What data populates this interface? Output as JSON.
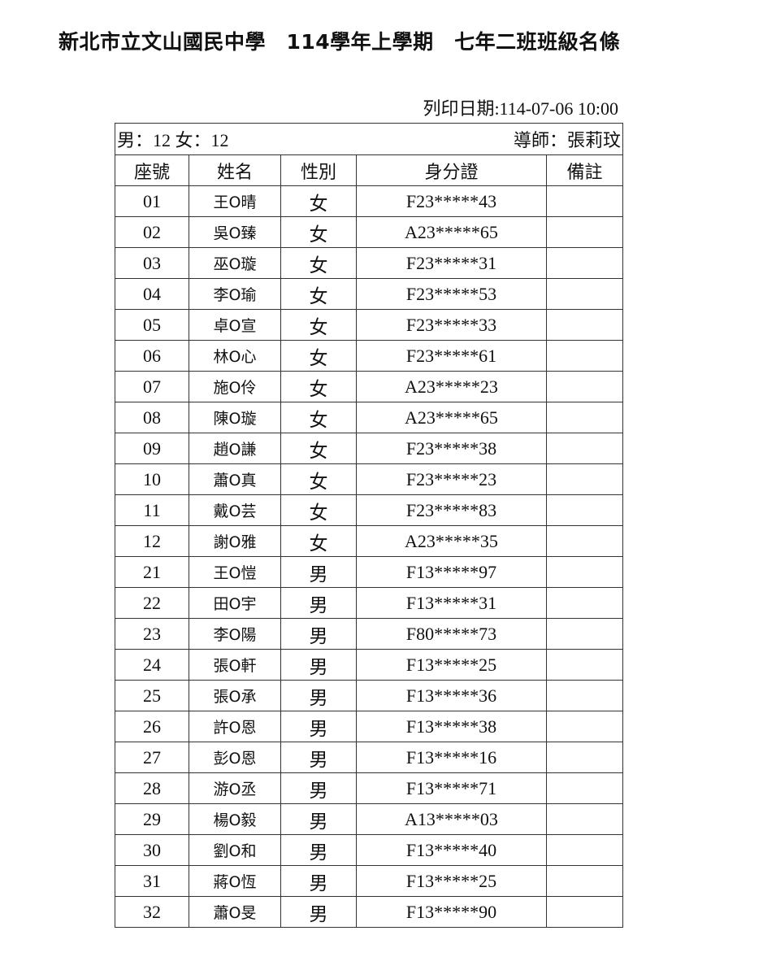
{
  "title": "新北市立文山國民中學　114學年上學期　七年二班班級名條",
  "print_date": "列印日期:114-07-06 10:00",
  "summary": "男：12 女：12",
  "teacher": "導師：張莉玟",
  "columns": [
    "座號",
    "姓名",
    "性別",
    "身分證",
    "備註"
  ],
  "rows": [
    [
      "01",
      "王O晴",
      "女",
      "F23*****43",
      ""
    ],
    [
      "02",
      "吳O臻",
      "女",
      "A23*****65",
      ""
    ],
    [
      "03",
      "巫O璇",
      "女",
      "F23*****31",
      ""
    ],
    [
      "04",
      "李O瑜",
      "女",
      "F23*****53",
      ""
    ],
    [
      "05",
      "卓O宣",
      "女",
      "F23*****33",
      ""
    ],
    [
      "06",
      "林O心",
      "女",
      "F23*****61",
      ""
    ],
    [
      "07",
      "施O伶",
      "女",
      "A23*****23",
      ""
    ],
    [
      "08",
      "陳O璇",
      "女",
      "A23*****65",
      ""
    ],
    [
      "09",
      "趙O謙",
      "女",
      "F23*****38",
      ""
    ],
    [
      "10",
      "蕭O真",
      "女",
      "F23*****23",
      ""
    ],
    [
      "11",
      "戴O芸",
      "女",
      "F23*****83",
      ""
    ],
    [
      "12",
      "謝O雅",
      "女",
      "A23*****35",
      ""
    ],
    [
      "21",
      "王O愷",
      "男",
      "F13*****97",
      ""
    ],
    [
      "22",
      "田O宇",
      "男",
      "F13*****31",
      ""
    ],
    [
      "23",
      "李O陽",
      "男",
      "F80*****73",
      ""
    ],
    [
      "24",
      "張O軒",
      "男",
      "F13*****25",
      ""
    ],
    [
      "25",
      "張O承",
      "男",
      "F13*****36",
      ""
    ],
    [
      "26",
      "許O恩",
      "男",
      "F13*****38",
      ""
    ],
    [
      "27",
      "彭O恩",
      "男",
      "F13*****16",
      ""
    ],
    [
      "28",
      "游O丞",
      "男",
      "F13*****71",
      ""
    ],
    [
      "29",
      "楊O毅",
      "男",
      "A13*****03",
      ""
    ],
    [
      "30",
      "劉O和",
      "男",
      "F13*****40",
      ""
    ],
    [
      "31",
      "蔣O恆",
      "男",
      "F13*****25",
      ""
    ],
    [
      "32",
      "蕭O旻",
      "男",
      "F13*****90",
      ""
    ]
  ]
}
